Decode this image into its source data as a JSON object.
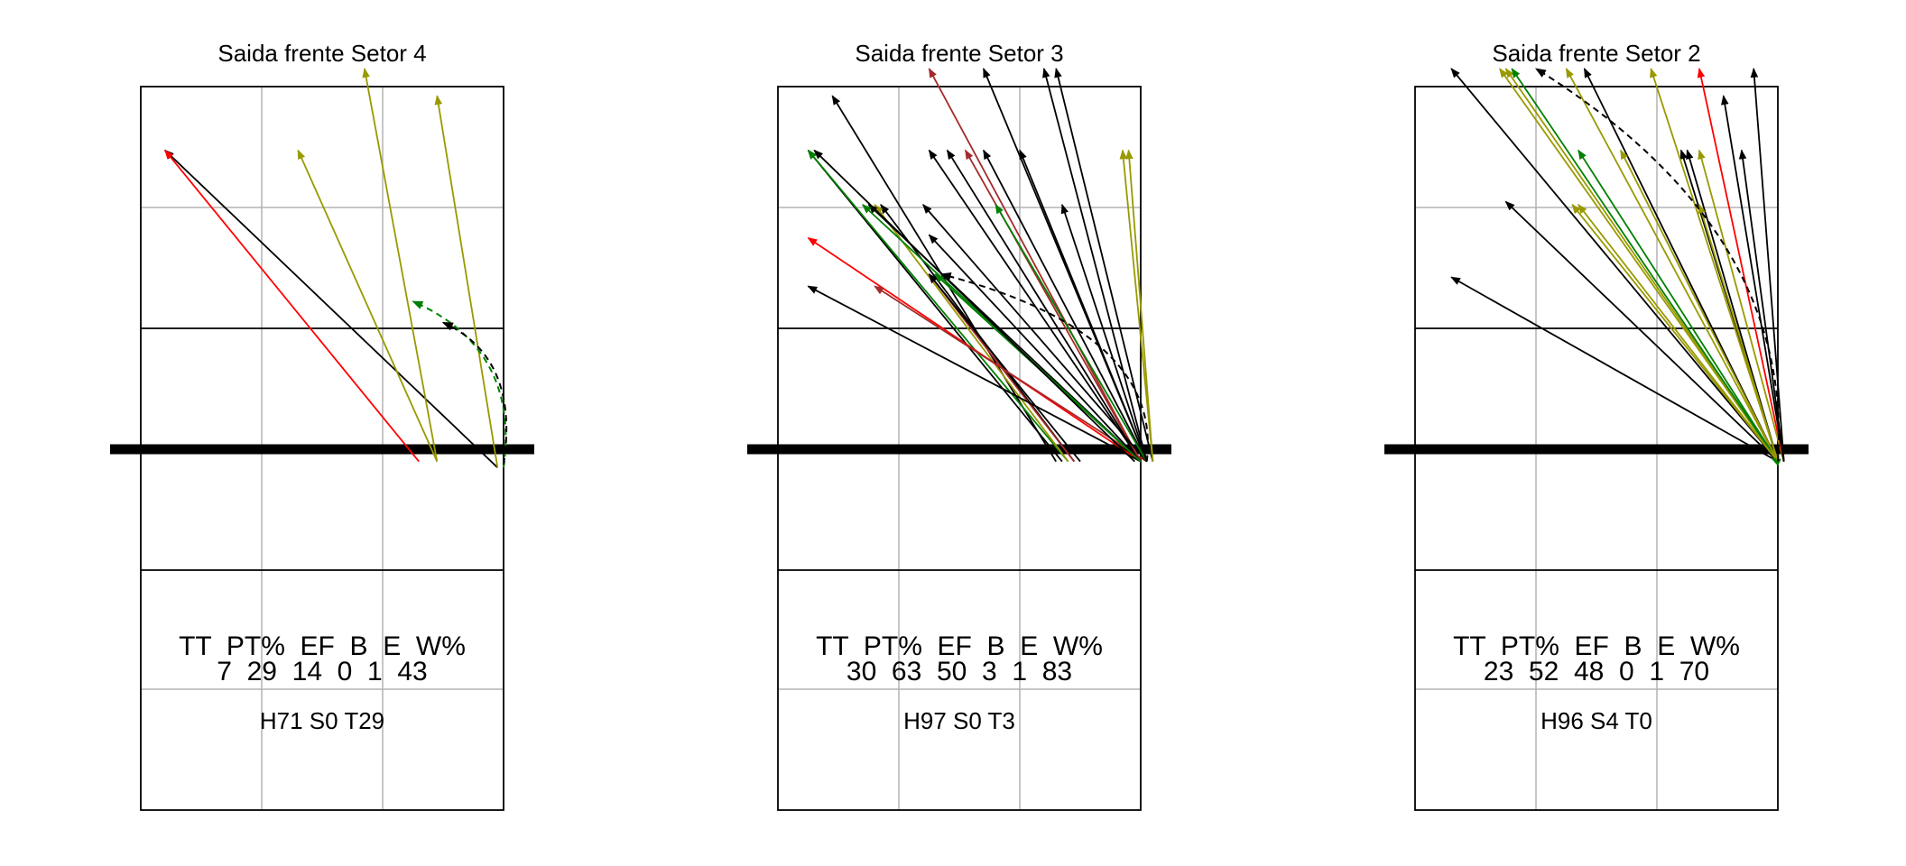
{
  "chart_data": [
    {
      "type": "arrow-map",
      "title": "Saida frente Setor 4",
      "stats": {
        "header": "TT  PT%  EF  B  E  W%",
        "values": "7  29  14  0  1  43"
      },
      "footer": "H71 S0 T29",
      "arrows": [
        {
          "from": [
            2.95,
            0.1
          ],
          "to": [
            0.2,
            5.35
          ],
          "color": "#000000"
        },
        {
          "from": [
            2.3,
            0.2
          ],
          "to": [
            0.2,
            5.35
          ],
          "color": "#ff0000"
        },
        {
          "from": [
            2.45,
            0.2
          ],
          "to": [
            1.3,
            5.35
          ],
          "color": "#999900"
        },
        {
          "from": [
            2.45,
            0.2
          ],
          "to": [
            1.85,
            6.7
          ],
          "color": "#999900"
        },
        {
          "from": [
            2.95,
            0.1
          ],
          "to": [
            2.45,
            6.25
          ],
          "color": "#999900"
        },
        {
          "from": [
            3.0,
            0.1
          ],
          "to": [
            2.25,
            2.85
          ],
          "color": "#008000",
          "dashed": true
        },
        {
          "from": [
            3.0,
            0.15
          ],
          "to": [
            2.5,
            2.5
          ],
          "color": "#000000",
          "dashed": true
        }
      ]
    },
    {
      "type": "arrow-map",
      "title": "Saida frente Setor 3",
      "stats": {
        "header": "TT  PT%  EF  B  E  W%",
        "values": "30  63  50  3  1  83"
      },
      "footer": "H97 S0 T3",
      "arrows": [
        {
          "from": [
            2.3,
            0.2
          ],
          "to": [
            0.45,
            6.25
          ],
          "color": "#000000"
        },
        {
          "from": [
            2.35,
            0.2
          ],
          "to": [
            0.25,
            5.35
          ],
          "color": "#000000"
        },
        {
          "from": [
            2.4,
            0.2
          ],
          "to": [
            0.25,
            5.35
          ],
          "color": "#008000"
        },
        {
          "from": [
            2.45,
            0.2
          ],
          "to": [
            0.85,
            4.45
          ],
          "color": "#000000"
        },
        {
          "from": [
            2.4,
            0.2
          ],
          "to": [
            0.8,
            4.45
          ],
          "color": "#999900"
        },
        {
          "from": [
            2.45,
            0.2
          ],
          "to": [
            1.25,
            3.3
          ],
          "color": "#a52a2a"
        },
        {
          "from": [
            2.5,
            0.2
          ],
          "to": [
            1.25,
            3.3
          ],
          "color": "#000000"
        },
        {
          "from": [
            3.0,
            0.2
          ],
          "to": [
            0.25,
            3.9
          ],
          "color": "#ff0000"
        },
        {
          "from": [
            3.0,
            0.2
          ],
          "to": [
            0.25,
            3.1
          ],
          "color": "#000000"
        },
        {
          "from": [
            3.05,
            0.2
          ],
          "to": [
            0.8,
            3.1
          ],
          "color": "#a52a2a"
        },
        {
          "from": [
            3.0,
            0.2
          ],
          "to": [
            1.25,
            6.7
          ],
          "color": "#a52a2a"
        },
        {
          "from": [
            3.05,
            0.2
          ],
          "to": [
            1.7,
            6.7
          ],
          "color": "#000000"
        },
        {
          "from": [
            3.05,
            0.2
          ],
          "to": [
            2.2,
            6.7
          ],
          "color": "#000000"
        },
        {
          "from": [
            3.1,
            0.2
          ],
          "to": [
            2.3,
            6.7
          ],
          "color": "#000000"
        },
        {
          "from": [
            3.0,
            0.2
          ],
          "to": [
            1.25,
            5.35
          ],
          "color": "#000000"
        },
        {
          "from": [
            3.0,
            0.2
          ],
          "to": [
            1.4,
            5.35
          ],
          "color": "#000000"
        },
        {
          "from": [
            3.0,
            0.2
          ],
          "to": [
            1.55,
            5.35
          ],
          "color": "#a52a2a"
        },
        {
          "from": [
            3.05,
            0.2
          ],
          "to": [
            1.7,
            5.35
          ],
          "color": "#000000"
        },
        {
          "from": [
            3.05,
            0.2
          ],
          "to": [
            2.0,
            5.35
          ],
          "color": "#000000"
        },
        {
          "from": [
            3.1,
            0.2
          ],
          "to": [
            2.85,
            5.35
          ],
          "color": "#999900"
        },
        {
          "from": [
            3.05,
            0.2
          ],
          "to": [
            1.2,
            4.45
          ],
          "color": "#000000"
        },
        {
          "from": [
            3.05,
            0.2
          ],
          "to": [
            1.8,
            4.45
          ],
          "color": "#008000"
        },
        {
          "from": [
            3.05,
            0.2
          ],
          "to": [
            2.35,
            4.45
          ],
          "color": "#000000"
        },
        {
          "from": [
            3.0,
            0.2
          ],
          "to": [
            0.75,
            4.45
          ],
          "color": "#000000"
        },
        {
          "from": [
            3.0,
            0.2
          ],
          "to": [
            0.7,
            4.45
          ],
          "color": "#008000"
        },
        {
          "from": [
            3.0,
            0.2
          ],
          "to": [
            1.25,
            3.95
          ],
          "color": "#000000"
        },
        {
          "from": [
            3.0,
            0.2
          ],
          "to": [
            1.3,
            3.3
          ],
          "color": "#008000"
        },
        {
          "from": [
            2.95,
            0.2
          ],
          "to": [
            0.3,
            5.35
          ],
          "color": "#000000"
        },
        {
          "from": [
            3.1,
            0.2
          ],
          "to": [
            2.9,
            5.35
          ],
          "color": "#999900"
        },
        {
          "from": [
            3.05,
            0.2
          ],
          "to": [
            1.35,
            3.3
          ],
          "color": "#000000",
          "dashed": true
        }
      ]
    },
    {
      "type": "arrow-map",
      "title": "Saida frente Setor 2",
      "stats": {
        "header": "TT  PT%  EF  B  E  W%",
        "values": "23  52  48  0  1  70"
      },
      "footer": "H96 S4 T0",
      "arrows": [
        {
          "from": [
            3.0,
            0.2
          ],
          "to": [
            0.3,
            3.25
          ],
          "color": "#000000"
        },
        {
          "from": [
            3.0,
            0.2
          ],
          "to": [
            0.75,
            4.5
          ],
          "color": "#000000"
        },
        {
          "from": [
            3.0,
            0.2
          ],
          "to": [
            0.3,
            6.7
          ],
          "color": "#000000"
        },
        {
          "from": [
            3.0,
            0.2
          ],
          "to": [
            0.7,
            6.7
          ],
          "color": "#999900"
        },
        {
          "from": [
            3.0,
            0.2
          ],
          "to": [
            0.75,
            6.7
          ],
          "color": "#999900"
        },
        {
          "from": [
            3.0,
            0.2
          ],
          "to": [
            0.8,
            6.7
          ],
          "color": "#008000"
        },
        {
          "from": [
            3.0,
            0.2
          ],
          "to": [
            1.25,
            6.7
          ],
          "color": "#999900"
        },
        {
          "from": [
            3.0,
            0.2
          ],
          "to": [
            1.4,
            6.7
          ],
          "color": "#000000"
        },
        {
          "from": [
            3.0,
            0.2
          ],
          "to": [
            1.35,
            5.35
          ],
          "color": "#008000"
        },
        {
          "from": [
            3.0,
            0.2
          ],
          "to": [
            1.7,
            5.35
          ],
          "color": "#999900"
        },
        {
          "from": [
            3.0,
            0.2
          ],
          "to": [
            2.2,
            5.35
          ],
          "color": "#000000"
        },
        {
          "from": [
            3.0,
            0.2
          ],
          "to": [
            2.25,
            5.35
          ],
          "color": "#000000"
        },
        {
          "from": [
            3.05,
            0.2
          ],
          "to": [
            2.35,
            5.35
          ],
          "color": "#999900"
        },
        {
          "from": [
            3.05,
            0.2
          ],
          "to": [
            2.7,
            5.35
          ],
          "color": "#000000"
        },
        {
          "from": [
            3.0,
            0.2
          ],
          "to": [
            1.3,
            4.45
          ],
          "color": "#999900"
        },
        {
          "from": [
            3.0,
            0.2
          ],
          "to": [
            1.35,
            4.45
          ],
          "color": "#999900"
        },
        {
          "from": [
            3.0,
            0.2
          ],
          "to": [
            2.35,
            4.45
          ],
          "color": "#999900"
        },
        {
          "from": [
            3.05,
            0.2
          ],
          "to": [
            2.35,
            6.7
          ],
          "color": "#ff0000"
        },
        {
          "from": [
            3.05,
            0.2
          ],
          "to": [
            2.55,
            6.25
          ],
          "color": "#000000"
        },
        {
          "from": [
            3.05,
            0.2
          ],
          "to": [
            2.8,
            6.7
          ],
          "color": "#000000"
        },
        {
          "from": [
            3.0,
            0.2
          ],
          "to": [
            2.95,
            0.25
          ],
          "color": "#008000"
        },
        {
          "from": [
            3.0,
            0.2
          ],
          "to": [
            1.95,
            6.7
          ],
          "color": "#999900"
        },
        {
          "from": [
            3.0,
            0.2
          ],
          "to": [
            1.0,
            6.7
          ],
          "color": "#000000",
          "dashed": true
        }
      ]
    }
  ]
}
